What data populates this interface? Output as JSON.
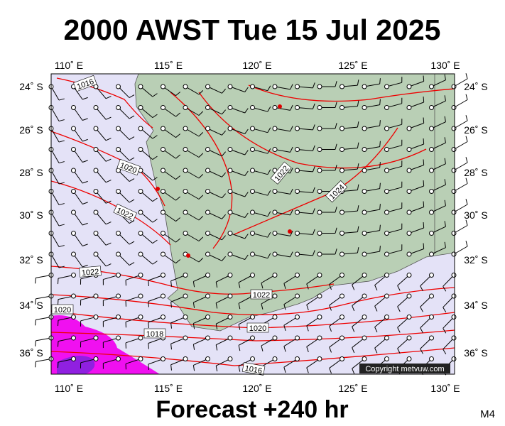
{
  "header": {
    "title": "2000 AWST Tue 15 Jul 2025"
  },
  "map": {
    "lon_labels": [
      "110˚ E",
      "115˚ E",
      "120˚ E",
      "125˚ E",
      "130˚ E"
    ],
    "lat_labels": [
      "24˚ S",
      "26˚ S",
      "28˚ S",
      "30˚ S",
      "32˚ S",
      "34˚ S",
      "36˚ S"
    ],
    "isobar_labels": [
      "1016",
      "1020",
      "1022",
      "1022",
      "1022",
      "1024",
      "1022",
      "1020",
      "1018",
      "1020",
      "1016"
    ],
    "copyright": "Copyright metvuw.com"
  },
  "footer": {
    "forecast": "Forecast +240 hr",
    "panel": "M4"
  }
}
